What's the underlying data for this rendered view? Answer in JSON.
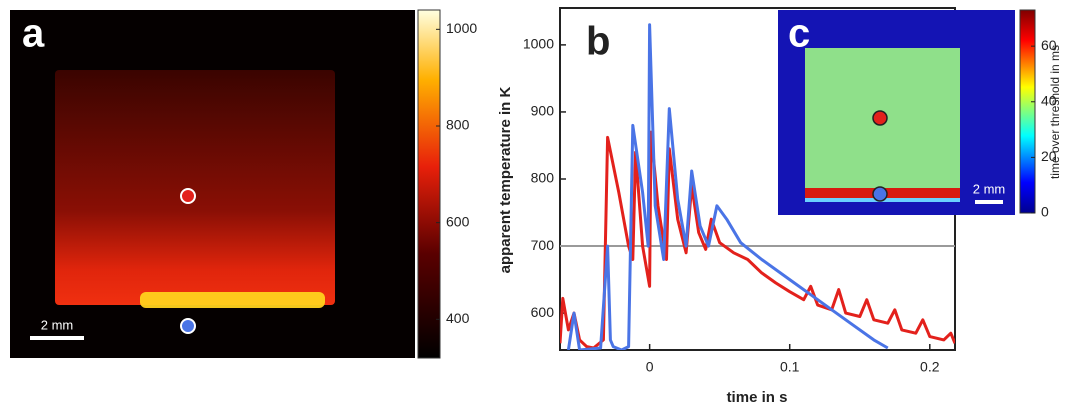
{
  "chart_data": [
    {
      "type": "image",
      "label": "a",
      "scale_bar": "2 mm",
      "colorbar": {
        "lim": [
          320,
          1040
        ],
        "ticks": [
          400,
          600,
          800,
          1000
        ]
      }
    },
    {
      "type": "line",
      "label": "b",
      "x_label": "time in s",
      "y_label": "apparent temperature in K",
      "xlim": [
        -0.064,
        0.218
      ],
      "ylim": [
        545,
        1055
      ],
      "xticks": [
        0,
        0.1,
        0.2
      ],
      "yticks": [
        600,
        700,
        800,
        900,
        1000
      ],
      "threshold": 700,
      "threshold_color": "#9a9a9a",
      "series": [
        {
          "color": "#e3211c",
          "x": [
            -0.064,
            -0.062,
            -0.058,
            -0.054,
            -0.05,
            -0.045,
            -0.04,
            -0.033,
            -0.03,
            -0.022,
            -0.015,
            -0.012,
            -0.01,
            -0.005,
            0,
            0.001,
            0.006,
            0.012,
            0.014,
            0.02,
            0.026,
            0.03,
            0.035,
            0.04,
            0.044,
            0.05,
            0.06,
            0.07,
            0.08,
            0.09,
            0.1,
            0.11,
            0.115,
            0.12,
            0.13,
            0.135,
            0.14,
            0.15,
            0.155,
            0.16,
            0.17,
            0.175,
            0.18,
            0.19,
            0.195,
            0.2,
            0.21,
            0.215,
            0.218
          ],
          "values": [
            555,
            622,
            575,
            600,
            560,
            550,
            548,
            560,
            862,
            780,
            700,
            680,
            840,
            700,
            640,
            870,
            760,
            680,
            845,
            740,
            690,
            790,
            720,
            695,
            740,
            705,
            690,
            680,
            660,
            645,
            632,
            620,
            640,
            612,
            605,
            635,
            600,
            595,
            620,
            590,
            585,
            605,
            575,
            570,
            590,
            565,
            560,
            570,
            555
          ]
        },
        {
          "color": "#4a74e6",
          "x": [
            -0.058,
            -0.054,
            -0.05,
            -0.035,
            -0.03,
            -0.028,
            -0.026,
            -0.02,
            -0.015,
            -0.012,
            -0.005,
            -0.001,
            0,
            0.004,
            0.01,
            0.014,
            0.02,
            0.026,
            0.03,
            0.036,
            0.042,
            0.048,
            0.055,
            0.065,
            0.08,
            0.1,
            0.12,
            0.14,
            0.16,
            0.17
          ],
          "values": [
            545,
            600,
            545,
            548,
            700,
            560,
            550,
            545,
            550,
            880,
            780,
            700,
            1030,
            760,
            680,
            905,
            770,
            700,
            812,
            730,
            700,
            760,
            740,
            705,
            680,
            650,
            620,
            590,
            560,
            548
          ]
        }
      ]
    },
    {
      "type": "image",
      "label": "c",
      "scale_bar": "2 mm",
      "colorbar": {
        "lim": [
          0,
          73
        ],
        "ticks": [
          0,
          20,
          40,
          60
        ],
        "label": "time over threshold in ms"
      }
    }
  ]
}
